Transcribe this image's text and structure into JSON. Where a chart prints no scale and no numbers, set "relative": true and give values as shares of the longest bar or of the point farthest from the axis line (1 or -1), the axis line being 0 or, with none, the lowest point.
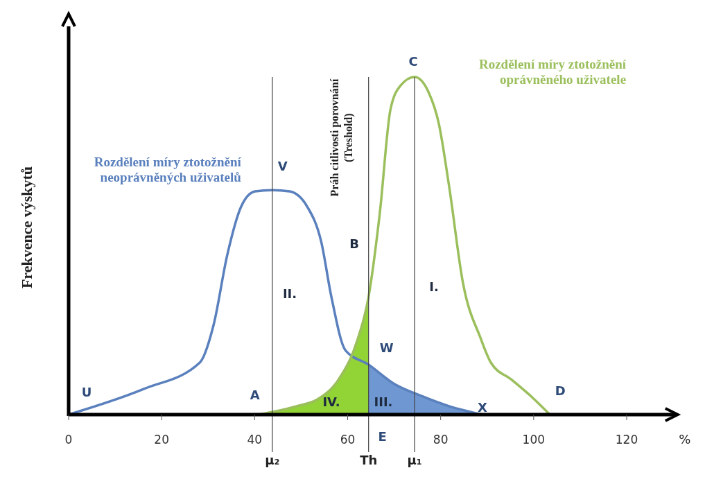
{
  "chart_data": {
    "type": "line",
    "relative": true,
    "ylabel": "Frekvence výskytů",
    "xlabel": "%",
    "xlim": [
      0,
      131
    ],
    "xticks": [
      0,
      20,
      40,
      60,
      80,
      100,
      120
    ],
    "series": [
      {
        "type": "area",
        "color": "#92d336",
        "x": [
          40.8,
          49.0,
          53.5,
          58.0,
          61.7,
          64.5
        ],
        "values": [
          0,
          0.025,
          0.045,
          0.103,
          0.205,
          0.349
        ]
      },
      {
        "type": "area",
        "color": "#6f97d2",
        "x": [
          64.5,
          69.9,
          75.9,
          81.8,
          89.0
        ],
        "values": [
          0.148,
          0.092,
          0.055,
          0.025,
          0
        ]
      },
      {
        "name": "Rozdělení míry ztotožnění neoprávněných uživatelů",
        "color": "#5a80bd",
        "x": [
          0,
          16.2,
          28.2,
          31.2,
          34.1,
          37.1,
          40.1,
          43.8,
          47.5,
          51.3,
          54.3,
          56.5,
          59.5,
          64.5,
          69.9,
          75.9,
          81.8,
          89.0
        ],
        "values": [
          0,
          0.076,
          0.154,
          0.267,
          0.472,
          0.616,
          0.661,
          0.665,
          0.661,
          0.616,
          0.513,
          0.349,
          0.191,
          0.148,
          0.092,
          0.055,
          0.025,
          0
        ]
      },
      {
        "name": "Rozdělení míry ztotožnění oprávněného uživatele",
        "color": "#9bbf5c",
        "x": [
          40.8,
          49.0,
          53.5,
          58.0,
          61.7,
          64.5,
          66.9,
          69.2,
          71.4,
          74.4,
          77.4,
          79.6,
          81.8,
          84.8,
          88.6,
          90.8,
          95.3,
          99.7,
          103.5
        ],
        "values": [
          0,
          0.025,
          0.045,
          0.103,
          0.205,
          0.349,
          0.595,
          0.903,
          0.975,
          1.0,
          0.955,
          0.862,
          0.678,
          0.39,
          0.226,
          0.154,
          0.103,
          0.051,
          0
        ]
      }
    ],
    "ref_lines": [
      {
        "axis": "x",
        "value": 43.8,
        "label": "μ₂",
        "color": "#404040"
      },
      {
        "axis": "x",
        "value": 64.5,
        "label": "Th",
        "color": "#404040"
      },
      {
        "axis": "x",
        "value": 74.4,
        "label": "μ₁",
        "color": "#404040"
      }
    ],
    "annotations": [
      "Práh citlivosti porovnání (Treshold)",
      {
        "text": "U",
        "x": 0,
        "y": 0
      },
      {
        "text": "V",
        "x": 43.8,
        "y": 0.665
      },
      {
        "text": "A",
        "x": 40.8,
        "y": 0
      },
      {
        "text": "C",
        "x": 74.4,
        "y": 1.0
      },
      {
        "text": "D",
        "x": 103.5,
        "y": 0
      },
      {
        "text": "W",
        "x": 64.5,
        "y": 0.148
      },
      {
        "text": "X",
        "x": 89.0,
        "y": 0
      },
      {
        "text": "E",
        "x": 64.5,
        "y": 0
      },
      "B",
      "I.",
      "II.",
      "III.",
      "IV."
    ]
  }
}
